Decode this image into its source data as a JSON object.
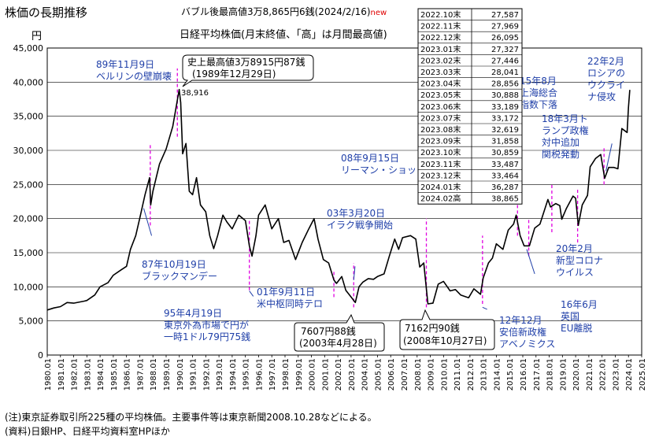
{
  "chart_data": {
    "type": "line",
    "title": "株価の長期推移",
    "subtitle": "日経平均株価(月末終値、「高」は月間最高値)",
    "record_note": "バブル後最高値3万8,865円6銭(2024/2/16)",
    "record_note_badge": "new",
    "ylabel": "円",
    "ylim": [
      0,
      45000
    ],
    "yticks": [
      0,
      5000,
      10000,
      15000,
      20000,
      25000,
      30000,
      35000,
      40000,
      45000
    ],
    "ytick_labels": [
      "0",
      "5,000",
      "10,000",
      "15,000",
      "20,000",
      "25,000",
      "30,000",
      "35,000",
      "40,000",
      "45,000"
    ],
    "xlim": [
      1980.0,
      2025.0
    ],
    "xtick_labels": [
      "1980.01",
      "1981.01",
      "1982.01",
      "1983.01",
      "1984.01",
      "1985.01",
      "1986.01",
      "1987.01",
      "1988.01",
      "1989.01",
      "1990.01",
      "1991.01",
      "1992.01",
      "1993.01",
      "1994.01",
      "1995.01",
      "1996.01",
      "1997.01",
      "1998.01",
      "1999.01",
      "2000.01",
      "2001.01",
      "2002.01",
      "2003.01",
      "2004.01",
      "2005.01",
      "2006.01",
      "2007.01",
      "2008.01",
      "2009.01",
      "2010.01",
      "2011.01",
      "2012.01",
      "2013.01",
      "2014.01",
      "2015.01",
      "2016.01",
      "2017.01",
      "2018.01",
      "2019.01",
      "2020.01",
      "2021.01",
      "2022.01",
      "2023.01",
      "2024.01",
      "2025.01"
    ],
    "series": [
      {
        "name": "日経平均株価",
        "x": [
          1980.0,
          1980.5,
          1981.0,
          1981.5,
          1982.0,
          1982.8,
          1983.0,
          1983.6,
          1984.0,
          1984.6,
          1985.0,
          1985.6,
          1986.0,
          1986.3,
          1986.7,
          1987.0,
          1987.4,
          1987.75,
          1987.83,
          1988.0,
          1988.5,
          1989.0,
          1989.5,
          1989.99,
          1990.1,
          1990.25,
          1990.5,
          1990.75,
          1991.0,
          1991.3,
          1991.6,
          1992.0,
          1992.3,
          1992.6,
          1992.9,
          1993.3,
          1993.6,
          1994.0,
          1994.5,
          1995.0,
          1995.3,
          1995.5,
          1995.8,
          1996.0,
          1996.5,
          1997.0,
          1997.5,
          1997.9,
          1998.3,
          1998.8,
          1999.3,
          1999.8,
          2000.2,
          2000.5,
          2000.9,
          2001.3,
          2001.7,
          2001.9,
          2002.3,
          2002.6,
          2003.0,
          2003.32,
          2003.6,
          2003.9,
          2004.3,
          2004.7,
          2005.0,
          2005.5,
          2005.9,
          2006.3,
          2006.6,
          2006.9,
          2007.5,
          2007.9,
          2008.2,
          2008.5,
          2008.82,
          2009.2,
          2009.6,
          2010.0,
          2010.5,
          2010.9,
          2011.3,
          2011.9,
          2012.3,
          2012.8,
          2013.0,
          2013.4,
          2013.7,
          2014.0,
          2014.5,
          2014.9,
          2015.3,
          2015.5,
          2015.8,
          2016.1,
          2016.5,
          2016.9,
          2017.3,
          2017.9,
          2018.1,
          2018.5,
          2018.8,
          2018.95,
          2019.3,
          2019.8,
          2020.0,
          2020.2,
          2020.5,
          2020.9,
          2021.1,
          2021.5,
          2021.9,
          2022.2,
          2022.5,
          2022.9,
          2023.2,
          2023.5,
          2023.9,
          2024.0,
          2024.1
        ],
        "values": [
          6600,
          6900,
          7100,
          7700,
          7600,
          7900,
          8000,
          8800,
          10000,
          10600,
          11700,
          12500,
          13000,
          15500,
          17500,
          20000,
          23500,
          26000,
          22000,
          24000,
          28000,
          30200,
          33500,
          38916,
          37000,
          29500,
          31000,
          24000,
          23500,
          26000,
          22000,
          21000,
          17500,
          15600,
          17500,
          20500,
          19500,
          18500,
          20500,
          19700,
          16000,
          14500,
          17500,
          20500,
          22000,
          18500,
          20000,
          16500,
          16800,
          14000,
          16500,
          18500,
          20000,
          17000,
          14000,
          13500,
          11000,
          10500,
          11500,
          9500,
          8500,
          7700,
          10000,
          10700,
          11200,
          11100,
          11500,
          11900,
          14500,
          17000,
          15500,
          17200,
          17500,
          17000,
          12900,
          13500,
          7500,
          7600,
          10400,
          10800,
          9400,
          9600,
          8800,
          8400,
          9700,
          8900,
          11300,
          13500,
          14200,
          16300,
          15500,
          18300,
          19200,
          20500,
          17500,
          16000,
          16000,
          18600,
          19200,
          22800,
          21700,
          22200,
          21900,
          19900,
          21500,
          23300,
          23000,
          19000,
          22000,
          23400,
          27600,
          28800,
          29400,
          25900,
          27500,
          27500,
          27300,
          33200,
          32619,
          36287,
          38865
        ]
      }
    ],
    "annotations": [
      {
        "date": "1987-10",
        "text_line1": "87年10月19日",
        "text_line2": "ブラックマンデー"
      },
      {
        "date": "1989-11",
        "text_line1": "89年11月9日",
        "text_line2": "ベルリンの壁崩壊"
      },
      {
        "date": "1989-12",
        "peak_value_label": "38,916",
        "text_line1": "史上最高値3万8915円87銭",
        "text_line2": "(1989年12月29日)"
      },
      {
        "date": "1995-04",
        "text_line1": "95年4月19日",
        "text_line2": "東京外為市場で円が",
        "text_line3": "一時1ドル79円75銭"
      },
      {
        "date": "2001-09",
        "text_line1": "01年9月11日",
        "text_line2": "米中枢同時テロ"
      },
      {
        "date": "2003-03",
        "text_line1": "03年3月20日",
        "text_line2": "イラク戦争開始"
      },
      {
        "date": "2003-04",
        "text_line1": "7607円88銭",
        "text_line2": "(2003年4月28日)"
      },
      {
        "date": "2008-09",
        "text_line1": "08年9月15日",
        "text_line2": "リーマン・ショック"
      },
      {
        "date": "2008-10",
        "text_line1": "7162円90銭",
        "text_line2": "(2008年10月27日)"
      },
      {
        "date": "2012-12",
        "text_line1": "12年12月",
        "text_line2": "安倍新政権",
        "text_line3": "アベノミクス"
      },
      {
        "date": "2015-08",
        "text_line1": "15年8月",
        "text_line2": "上海総合",
        "text_line3": "指数下落"
      },
      {
        "date": "2016-06",
        "text_line1": "16年6月",
        "text_line2": "英国",
        "text_line3": "EU離脱"
      },
      {
        "date": "2018-03",
        "text_line1": "18年3月ト",
        "text_line2": "ランプ政権",
        "text_line3": "対中追加",
        "text_line4": "関税発動"
      },
      {
        "date": "2020-02",
        "text_line1": "20年2月",
        "text_line2": "新型コロナ",
        "text_line3": "ウイルス"
      },
      {
        "date": "2022-02",
        "text_line1": "22年2月",
        "text_line2": "ロシアの",
        "text_line3": "ウクライ",
        "text_line4": "ナ侵攻"
      }
    ],
    "table": {
      "rows": [
        [
          "2022.10末",
          "27,587"
        ],
        [
          "2022.11末",
          "27,969"
        ],
        [
          "2022.12末",
          "26,095"
        ],
        [
          "2023.01末",
          "27,327"
        ],
        [
          "2023.02末",
          "27,446"
        ],
        [
          "2023.03末",
          "28,041"
        ],
        [
          "2023.04末",
          "28,856"
        ],
        [
          "2023.05末",
          "30,888"
        ],
        [
          "2023.06末",
          "33,189"
        ],
        [
          "2023.07末",
          "33,172"
        ],
        [
          "2023.08末",
          "32,619"
        ],
        [
          "2023.09末",
          "31,858"
        ],
        [
          "2023.10末",
          "30,859"
        ],
        [
          "2023.11末",
          "33,487"
        ],
        [
          "2023.12末",
          "33,464"
        ],
        [
          "2024.01末",
          "36,287"
        ],
        [
          "2024.02高",
          "38,865"
        ]
      ]
    },
    "colors": {
      "line": "#000000",
      "annotation_text": "#1f3fa8",
      "marker_dash": "#e000e0",
      "new_badge": "#e00000",
      "grid": "#000000"
    }
  },
  "notes": {
    "note1": "(注)東京証券取引所225種の平均株価。主要事件等は東京新聞2008.10.28などによる。",
    "note2": "(資料)日銀HP、日経平均資料室HPほか"
  }
}
